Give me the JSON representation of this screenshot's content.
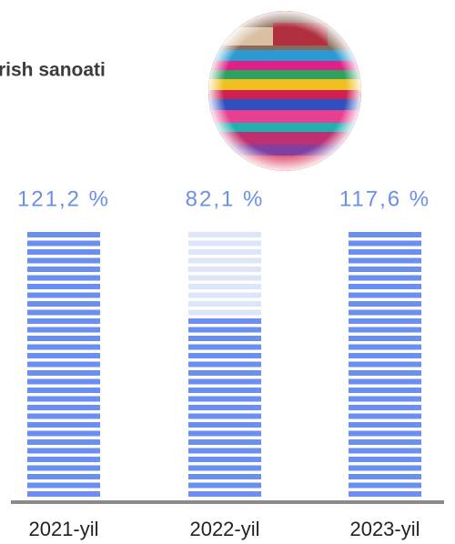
{
  "chart_data": {
    "type": "bar",
    "title": "rish sanoati",
    "categories": [
      "2021-yil",
      "2022-yil",
      "2023-yil"
    ],
    "values": [
      121.2,
      82.1,
      117.6
    ],
    "value_labels": [
      "121,2 %",
      "82,1 %",
      "117,6 %"
    ],
    "color": "#6b8ff0"
  }
}
